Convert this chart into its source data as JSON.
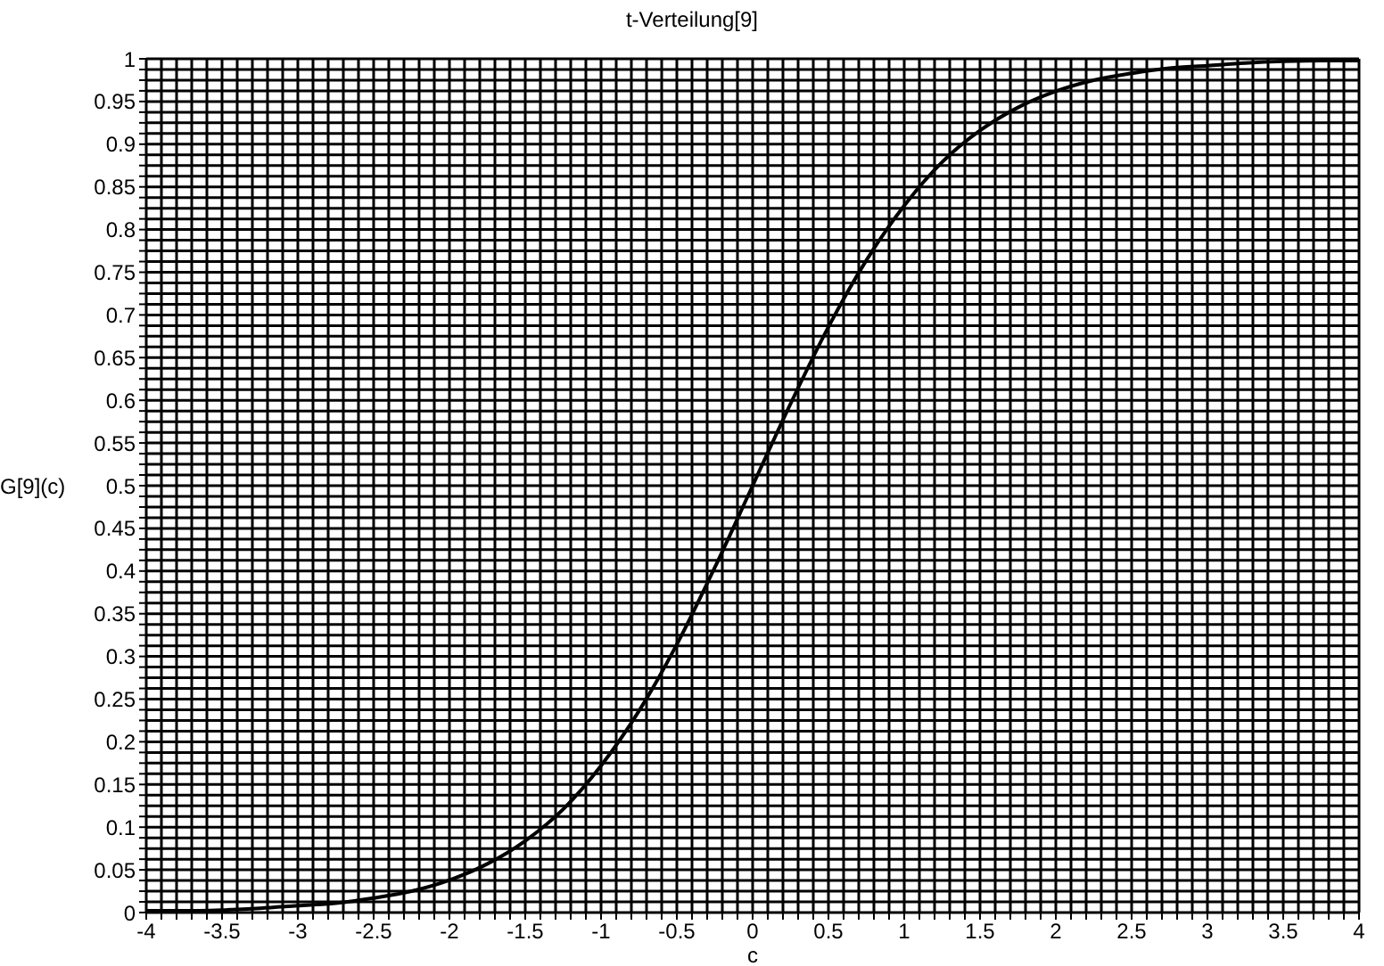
{
  "chart_data": {
    "type": "line",
    "title": "t-Verteilung[9]",
    "xlabel": "c",
    "ylabel": "G[9](c)",
    "x": [
      -4,
      -3.75,
      -3.5,
      -3.25,
      -3,
      -2.75,
      -2.5,
      -2.25,
      -2,
      -1.75,
      -1.5,
      -1.25,
      -1,
      -0.75,
      -0.5,
      -0.25,
      0,
      0.25,
      0.5,
      0.75,
      1,
      1.25,
      1.5,
      1.75,
      2,
      2.25,
      2.5,
      2.75,
      3,
      3.25,
      3.5,
      3.75,
      4
    ],
    "series": [
      {
        "color": "#000000",
        "values": [
          0.002,
          0.002,
          0.003,
          0.005,
          0.008,
          0.011,
          0.017,
          0.025,
          0.038,
          0.057,
          0.084,
          0.121,
          0.172,
          0.236,
          0.314,
          0.404,
          0.5,
          0.596,
          0.686,
          0.764,
          0.828,
          0.879,
          0.916,
          0.943,
          0.962,
          0.975,
          0.983,
          0.989,
          0.992,
          0.995,
          0.997,
          0.998,
          0.998
        ]
      }
    ],
    "xlim": [
      -4,
      4
    ],
    "ylim": [
      0,
      1
    ],
    "xticks": [
      -4,
      {
        "value": -3.9,
        "label": null
      },
      {
        "value": -3.8,
        "label": null
      },
      {
        "value": -3.7,
        "label": null
      },
      {
        "value": -3.6,
        "label": null
      },
      -3.5,
      {
        "value": -3.4,
        "label": null
      },
      {
        "value": -3.3,
        "label": null
      },
      {
        "value": -3.2,
        "label": null
      },
      {
        "value": -3.1,
        "label": null
      },
      -3,
      {
        "value": -2.9,
        "label": null
      },
      {
        "value": -2.8,
        "label": null
      },
      {
        "value": -2.7,
        "label": null
      },
      {
        "value": -2.6,
        "label": null
      },
      -2.5,
      {
        "value": -2.4,
        "label": null
      },
      {
        "value": -2.3,
        "label": null
      },
      {
        "value": -2.2,
        "label": null
      },
      {
        "value": -2.1,
        "label": null
      },
      -2,
      {
        "value": -1.9,
        "label": null
      },
      {
        "value": -1.8,
        "label": null
      },
      {
        "value": -1.7,
        "label": null
      },
      {
        "value": -1.6,
        "label": null
      },
      -1.5,
      {
        "value": -1.4,
        "label": null
      },
      {
        "value": -1.3,
        "label": null
      },
      {
        "value": -1.2,
        "label": null
      },
      {
        "value": -1.1,
        "label": null
      },
      -1,
      {
        "value": -0.9,
        "label": null
      },
      {
        "value": -0.8,
        "label": null
      },
      {
        "value": -0.7,
        "label": null
      },
      {
        "value": -0.6,
        "label": null
      },
      -0.5,
      {
        "value": -0.4,
        "label": null
      },
      {
        "value": -0.3,
        "label": null
      },
      {
        "value": -0.2,
        "label": null
      },
      {
        "value": -0.1,
        "label": null
      },
      0,
      {
        "value": 0.1,
        "label": null
      },
      {
        "value": 0.2,
        "label": null
      },
      {
        "value": 0.3,
        "label": null
      },
      {
        "value": 0.4,
        "label": null
      },
      0.5,
      {
        "value": 0.6,
        "label": null
      },
      {
        "value": 0.7,
        "label": null
      },
      {
        "value": 0.8,
        "label": null
      },
      {
        "value": 0.9,
        "label": null
      },
      1,
      {
        "value": 1.1,
        "label": null
      },
      {
        "value": 1.2,
        "label": null
      },
      {
        "value": 1.3,
        "label": null
      },
      {
        "value": 1.4,
        "label": null
      },
      1.5,
      {
        "value": 1.6,
        "label": null
      },
      {
        "value": 1.7,
        "label": null
      },
      {
        "value": 1.8,
        "label": null
      },
      {
        "value": 1.9,
        "label": null
      },
      2,
      {
        "value": 2.1,
        "label": null
      },
      {
        "value": 2.2,
        "label": null
      },
      {
        "value": 2.3,
        "label": null
      },
      {
        "value": 2.4,
        "label": null
      },
      2.5,
      {
        "value": 2.6,
        "label": null
      },
      {
        "value": 2.7,
        "label": null
      },
      {
        "value": 2.8,
        "label": null
      },
      {
        "value": 2.9,
        "label": null
      },
      3,
      {
        "value": 3.1,
        "label": null
      },
      {
        "value": 3.2,
        "label": null
      },
      {
        "value": 3.3,
        "label": null
      },
      {
        "value": 3.4,
        "label": null
      },
      3.5,
      {
        "value": 3.6,
        "label": null
      },
      {
        "value": 3.7,
        "label": null
      },
      {
        "value": 3.8,
        "label": null
      },
      {
        "value": 3.9,
        "label": null
      },
      4
    ],
    "yticks": [
      0,
      {
        "value": 0.0125,
        "label": null
      },
      {
        "value": 0.025,
        "label": null
      },
      {
        "value": 0.0375,
        "label": null
      },
      0.05,
      {
        "value": 0.0625,
        "label": null
      },
      {
        "value": 0.075,
        "label": null
      },
      {
        "value": 0.0875,
        "label": null
      },
      0.1,
      {
        "value": 0.1125,
        "label": null
      },
      {
        "value": 0.125,
        "label": null
      },
      {
        "value": 0.1375,
        "label": null
      },
      0.15,
      {
        "value": 0.1625,
        "label": null
      },
      {
        "value": 0.175,
        "label": null
      },
      {
        "value": 0.1875,
        "label": null
      },
      0.2,
      {
        "value": 0.2125,
        "label": null
      },
      {
        "value": 0.225,
        "label": null
      },
      {
        "value": 0.2375,
        "label": null
      },
      0.25,
      {
        "value": 0.2625,
        "label": null
      },
      {
        "value": 0.275,
        "label": null
      },
      {
        "value": 0.2875,
        "label": null
      },
      0.3,
      {
        "value": 0.3125,
        "label": null
      },
      {
        "value": 0.325,
        "label": null
      },
      {
        "value": 0.3375,
        "label": null
      },
      0.35,
      {
        "value": 0.3625,
        "label": null
      },
      {
        "value": 0.375,
        "label": null
      },
      {
        "value": 0.3875,
        "label": null
      },
      0.4,
      {
        "value": 0.4125,
        "label": null
      },
      {
        "value": 0.425,
        "label": null
      },
      {
        "value": 0.4375,
        "label": null
      },
      0.45,
      {
        "value": 0.4625,
        "label": null
      },
      {
        "value": 0.475,
        "label": null
      },
      {
        "value": 0.4875,
        "label": null
      },
      0.5,
      {
        "value": 0.5125,
        "label": null
      },
      {
        "value": 0.525,
        "label": null
      },
      {
        "value": 0.5375,
        "label": null
      },
      0.55,
      {
        "value": 0.5625,
        "label": null
      },
      {
        "value": 0.575,
        "label": null
      },
      {
        "value": 0.5875,
        "label": null
      },
      0.6,
      {
        "value": 0.6125,
        "label": null
      },
      {
        "value": 0.625,
        "label": null
      },
      {
        "value": 0.6375,
        "label": null
      },
      0.65,
      {
        "value": 0.6625,
        "label": null
      },
      {
        "value": 0.675,
        "label": null
      },
      {
        "value": 0.6875,
        "label": null
      },
      0.7,
      {
        "value": 0.7125,
        "label": null
      },
      {
        "value": 0.725,
        "label": null
      },
      {
        "value": 0.7375,
        "label": null
      },
      0.75,
      {
        "value": 0.7625,
        "label": null
      },
      {
        "value": 0.775,
        "label": null
      },
      {
        "value": 0.7875,
        "label": null
      },
      0.8,
      {
        "value": 0.8125,
        "label": null
      },
      {
        "value": 0.825,
        "label": null
      },
      {
        "value": 0.8375,
        "label": null
      },
      0.85,
      {
        "value": 0.8625,
        "label": null
      },
      {
        "value": 0.875,
        "label": null
      },
      {
        "value": 0.8875,
        "label": null
      },
      0.9,
      {
        "value": 0.9125,
        "label": null
      },
      {
        "value": 0.925,
        "label": null
      },
      {
        "value": 0.9375,
        "label": null
      },
      0.95,
      {
        "value": 0.9625,
        "label": null
      },
      {
        "value": 0.975,
        "label": null
      },
      {
        "value": 0.9875,
        "label": null
      },
      1
    ],
    "grid": true,
    "legend": false,
    "marker": "none",
    "line_style": "solid"
  }
}
